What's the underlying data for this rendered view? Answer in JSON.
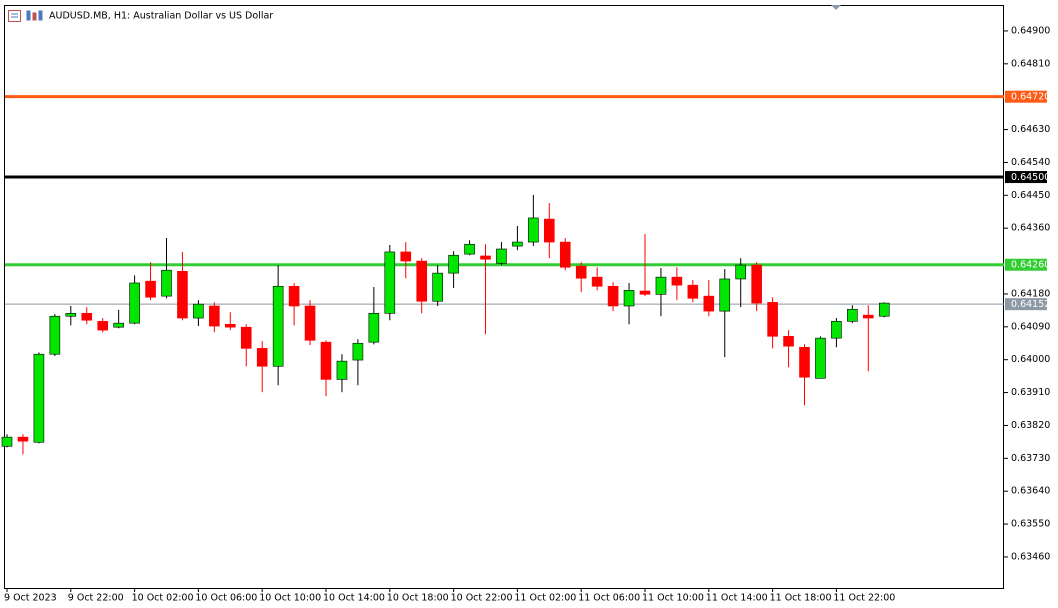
{
  "chart_data": {
    "type": "candlestick",
    "title": "AUDUSD.MB, H1:  Australian Dollar vs US Dollar",
    "bull_color": "#00e600",
    "bear_color": "#ff0000",
    "ylim": [
      0.63375,
      0.64971
    ],
    "yticks": [
      {
        "value": 0.649,
        "label": "0.64900"
      },
      {
        "value": 0.6481,
        "label": "0.64810"
      },
      {
        "value": 0.6463,
        "label": "0.64630"
      },
      {
        "value": 0.6454,
        "label": "0.64540"
      },
      {
        "value": 0.6445,
        "label": "0.64450"
      },
      {
        "value": 0.6436,
        "label": "0.64360"
      },
      {
        "value": 0.6418,
        "label": "0.64180"
      },
      {
        "value": 0.6409,
        "label": "0.64090"
      },
      {
        "value": 0.64,
        "label": "0.64000"
      },
      {
        "value": 0.6391,
        "label": "0.63910"
      },
      {
        "value": 0.6382,
        "label": "0.63820"
      },
      {
        "value": 0.6373,
        "label": "0.63730"
      },
      {
        "value": 0.6364,
        "label": "0.63640"
      },
      {
        "value": 0.6355,
        "label": "0.63550"
      },
      {
        "value": 0.6346,
        "label": "0.63460"
      }
    ],
    "levels": [
      {
        "value": 0.6472,
        "label": "0.64720",
        "color": "#ff5a14",
        "width": 3
      },
      {
        "value": 0.645,
        "label": "0.64500",
        "color": "#000000",
        "width": 3
      },
      {
        "value": 0.6426,
        "label": "0.64260",
        "color": "#32cd32",
        "width": 3
      },
      {
        "value": 0.64152,
        "label": "0.64152",
        "color": "#8c98a4",
        "width": 1
      }
    ],
    "categories": [
      "9 Oct 2023",
      null,
      null,
      null,
      "9 Oct 22:00",
      null,
      null,
      null,
      "10 Oct 02:00",
      null,
      null,
      null,
      "10 Oct 06:00",
      null,
      null,
      null,
      "10 Oct 10:00",
      null,
      null,
      null,
      "10 Oct 14:00",
      null,
      null,
      null,
      "10 Oct 18:00",
      null,
      null,
      null,
      "10 Oct 22:00",
      null,
      null,
      null,
      "11 Oct 02:00",
      null,
      null,
      null,
      "11 Oct 06:00",
      null,
      null,
      null,
      "11 Oct 10:00",
      null,
      null,
      null,
      "11 Oct 14:00",
      null,
      null,
      null,
      "11 Oct 18:00",
      null,
      null,
      null,
      "11 Oct 22:00",
      null,
      null,
      null
    ],
    "ohlc": [
      [
        0.63763,
        0.63796,
        0.6376,
        0.63788
      ],
      [
        0.63788,
        0.63796,
        0.63741,
        0.63777
      ],
      [
        0.63774,
        0.6402,
        0.63771,
        0.64015
      ],
      [
        0.64015,
        0.64125,
        0.6401,
        0.64119
      ],
      [
        0.64119,
        0.64147,
        0.64094,
        0.64127
      ],
      [
        0.64127,
        0.64144,
        0.64097,
        0.64108
      ],
      [
        0.64105,
        0.64114,
        0.64075,
        0.64081
      ],
      [
        0.64089,
        0.64136,
        0.64086,
        0.641
      ],
      [
        0.641,
        0.64231,
        0.64097,
        0.6421
      ],
      [
        0.64215,
        0.64267,
        0.64163,
        0.64171
      ],
      [
        0.64174,
        0.64333,
        0.64168,
        0.64245
      ],
      [
        0.64242,
        0.64295,
        0.64108,
        0.64114
      ],
      [
        0.64114,
        0.64163,
        0.64092,
        0.64152
      ],
      [
        0.64147,
        0.64157,
        0.64075,
        0.64092
      ],
      [
        0.64097,
        0.6413,
        0.64081,
        0.64089
      ],
      [
        0.64089,
        0.64097,
        0.63982,
        0.64031
      ],
      [
        0.64031,
        0.64051,
        0.63911,
        0.63982
      ],
      [
        0.63982,
        0.64259,
        0.6393,
        0.64201
      ],
      [
        0.64201,
        0.6421,
        0.64094,
        0.64147
      ],
      [
        0.64147,
        0.64163,
        0.6404,
        0.64053
      ],
      [
        0.64048,
        0.64053,
        0.639,
        0.63946
      ],
      [
        0.63946,
        0.64015,
        0.63911,
        0.63996
      ],
      [
        0.63999,
        0.64056,
        0.6393,
        0.64045
      ],
      [
        0.64048,
        0.64199,
        0.64042,
        0.64127
      ],
      [
        0.64127,
        0.64314,
        0.64108,
        0.64295
      ],
      [
        0.64295,
        0.64322,
        0.64223,
        0.6427
      ],
      [
        0.6427,
        0.64278,
        0.64127,
        0.6416
      ],
      [
        0.6416,
        0.64259,
        0.64147,
        0.64237
      ],
      [
        0.64237,
        0.64297,
        0.64196,
        0.64286
      ],
      [
        0.64289,
        0.64327,
        0.64286,
        0.64316
      ],
      [
        0.64284,
        0.64316,
        0.6407,
        0.64275
      ],
      [
        0.64264,
        0.64322,
        0.64259,
        0.64303
      ],
      [
        0.64311,
        0.64366,
        0.643,
        0.64322
      ],
      [
        0.64322,
        0.64451,
        0.64311,
        0.64388
      ],
      [
        0.64385,
        0.64429,
        0.64278,
        0.64322
      ],
      [
        0.64322,
        0.64333,
        0.64245,
        0.64253
      ],
      [
        0.64256,
        0.64267,
        0.64185,
        0.64223
      ],
      [
        0.64226,
        0.64253,
        0.6419,
        0.64201
      ],
      [
        0.64201,
        0.64212,
        0.64133,
        0.64147
      ],
      [
        0.64147,
        0.6421,
        0.64097,
        0.6419
      ],
      [
        0.64188,
        0.64344,
        0.64174,
        0.64179
      ],
      [
        0.64179,
        0.64251,
        0.64119,
        0.64226
      ],
      [
        0.64226,
        0.64253,
        0.64163,
        0.64204
      ],
      [
        0.64204,
        0.64218,
        0.64157,
        0.64168
      ],
      [
        0.64174,
        0.64218,
        0.64119,
        0.64133
      ],
      [
        0.64133,
        0.64248,
        0.64007,
        0.64221
      ],
      [
        0.64221,
        0.64278,
        0.64144,
        0.64259
      ],
      [
        0.64259,
        0.64267,
        0.64133,
        0.64155
      ],
      [
        0.64157,
        0.64171,
        0.64031,
        0.64064
      ],
      [
        0.64064,
        0.64081,
        0.63979,
        0.64037
      ],
      [
        0.64034,
        0.64042,
        0.63875,
        0.63952
      ],
      [
        0.63949,
        0.64064,
        0.63949,
        0.64059
      ],
      [
        0.64059,
        0.64114,
        0.64034,
        0.64105
      ],
      [
        0.64105,
        0.64149,
        0.641,
        0.64138
      ],
      [
        0.64122,
        0.64149,
        0.63968,
        0.64114
      ],
      [
        0.64119,
        0.64157,
        0.64116,
        0.64155
      ]
    ]
  }
}
